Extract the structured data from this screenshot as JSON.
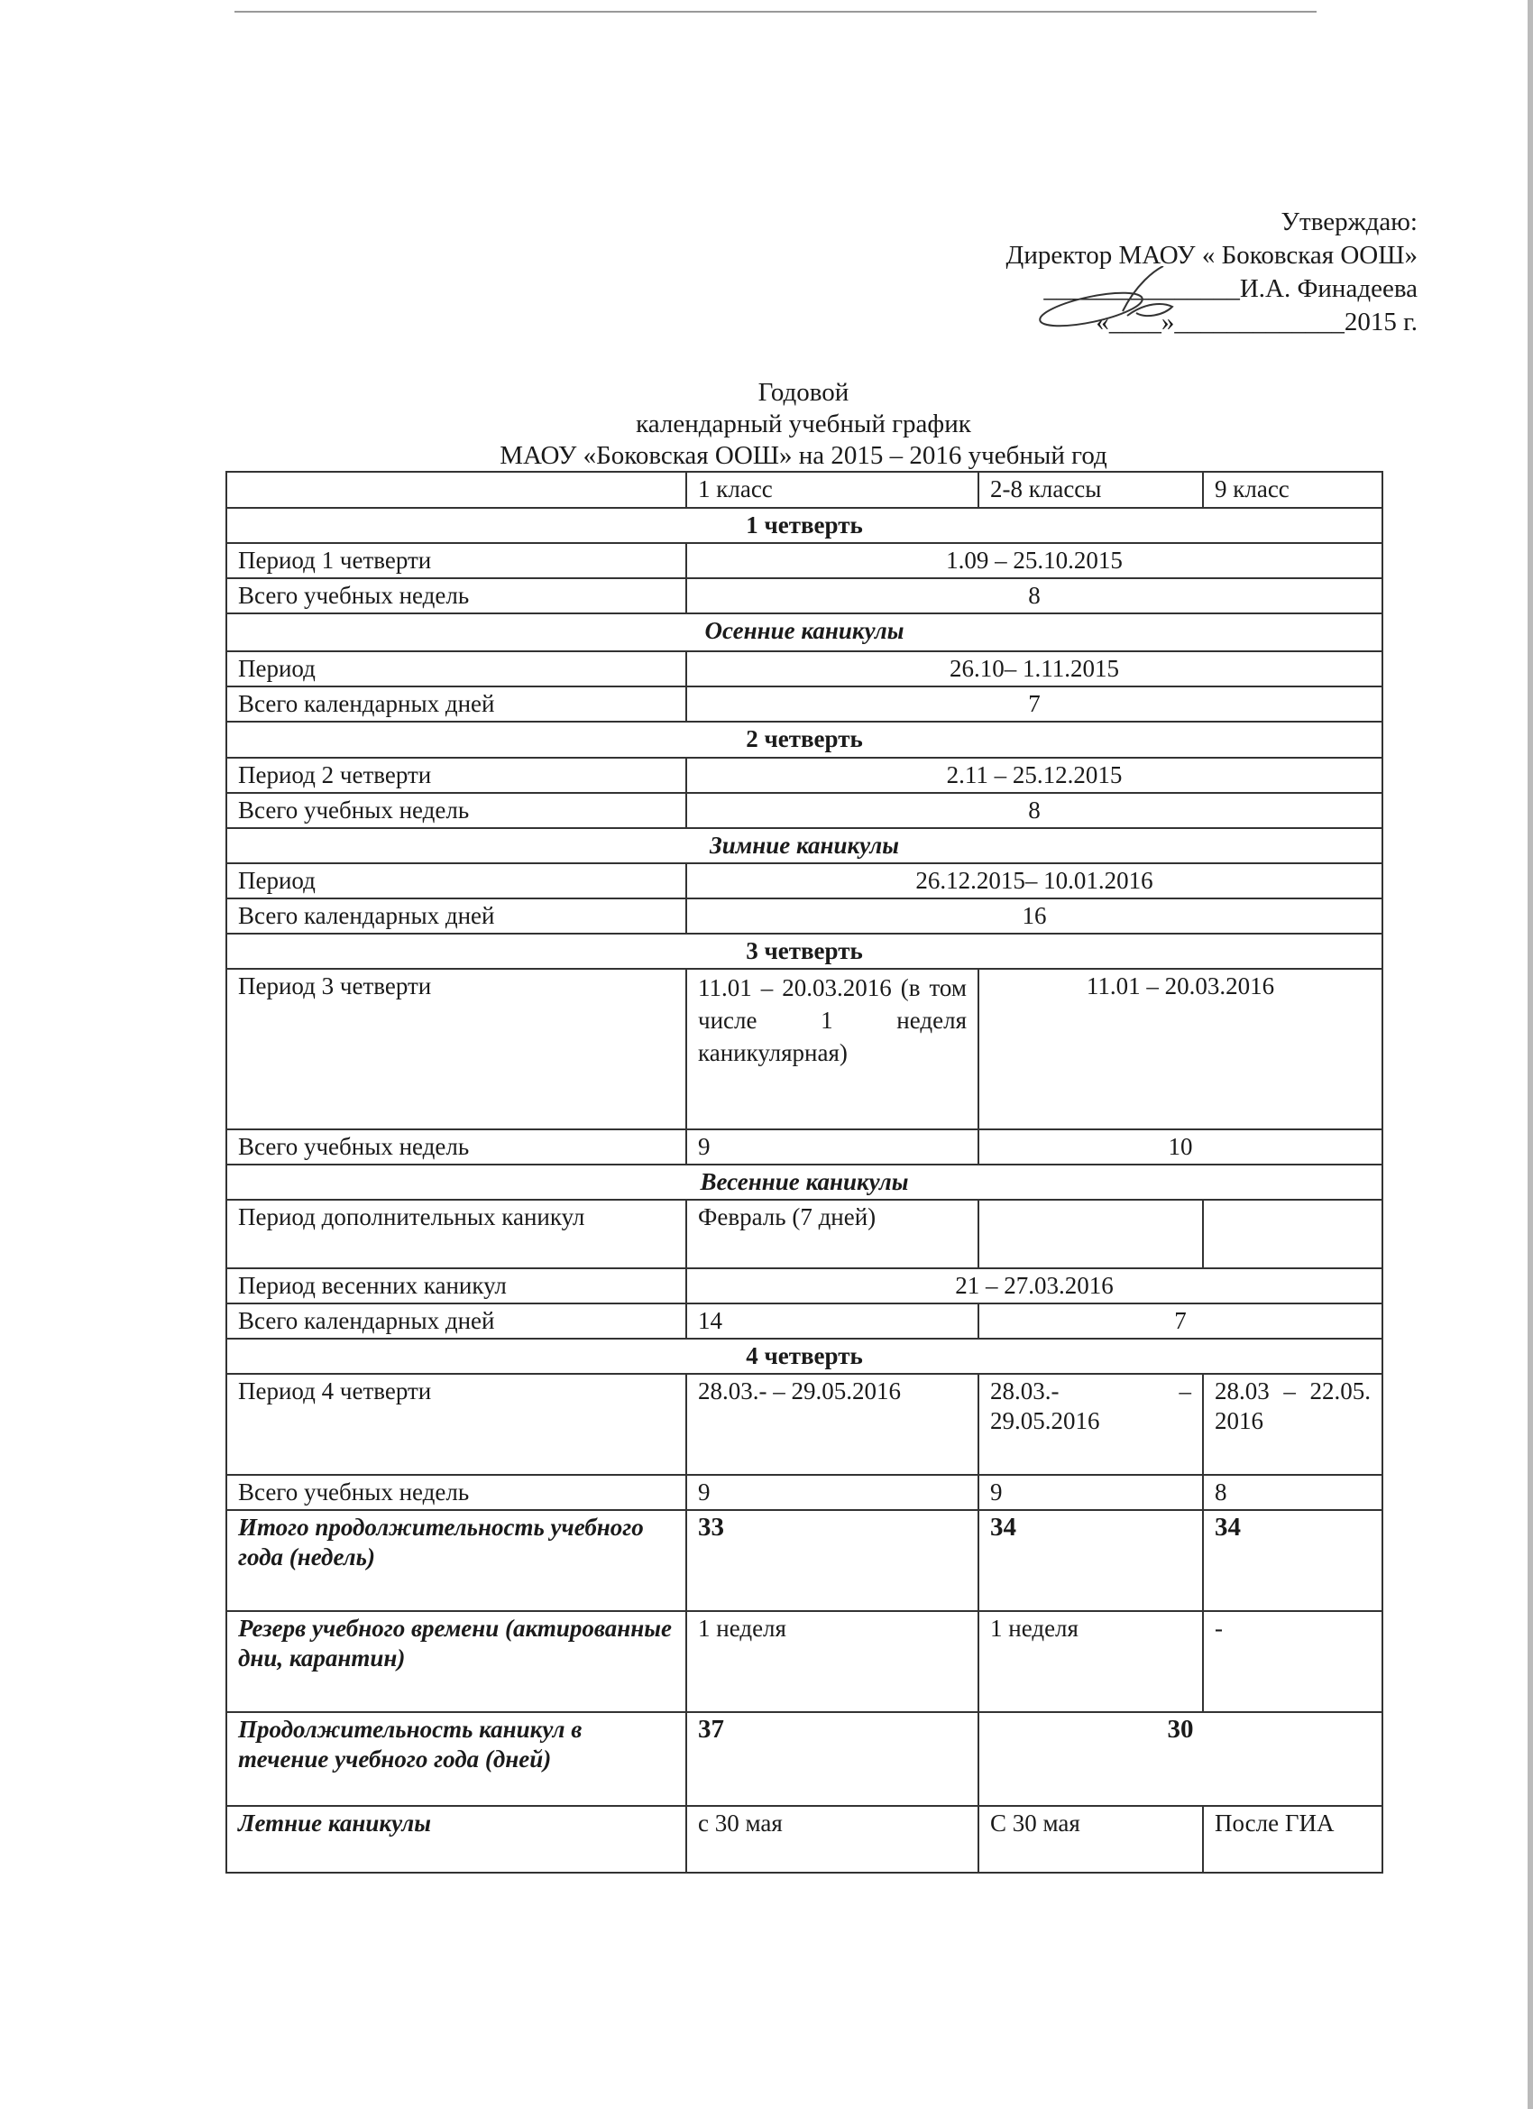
{
  "approval": {
    "line1": "Утверждаю:",
    "line2": "Директор МАОУ « Боковская ООШ»",
    "line3": "_______________И.А. Финадеева",
    "line4": "«____»_____________2015 г."
  },
  "title": {
    "line1": "Годовой",
    "line2": "календарный учебный график",
    "line3": "МАОУ «Боковская ООШ» на 2015 – 2016 учебный год"
  },
  "table": {
    "headers": [
      "",
      "1 класс",
      "2-8 классы",
      "9 класс"
    ],
    "q1": {
      "title": "1 четверть",
      "period_label": "Период 1 четверти",
      "period": "1.09 – 25.10.2015",
      "weeks_label": "Всего учебных недель",
      "weeks": "8"
    },
    "autumn": {
      "title": "Осенние каникулы",
      "period_label": "Период",
      "period": "26.10– 1.11.2015",
      "days_label": "Всего календарных дней",
      "days": "7"
    },
    "q2": {
      "title": "2 четверть",
      "period_label": "Период 2 четверти",
      "period": "2.11 – 25.12.2015",
      "weeks_label": "Всего учебных недель",
      "weeks": "8"
    },
    "winter": {
      "title": "Зимние каникулы",
      "period_label": "Период",
      "period": "26.12.2015– 10.01.2016",
      "days_label": "Всего календарных дней",
      "days": "16"
    },
    "q3": {
      "title": "3 четверть",
      "period_label": "Период 3 четверти",
      "period_1": "11.01 – 20.03.2016 (в том числе 1 неделя каникулярная)",
      "period_other": "11.01 – 20.03.2016",
      "weeks_label": "Всего учебных недель",
      "weeks_1": "9",
      "weeks_other": "10"
    },
    "spring": {
      "title": "Весенние каникулы",
      "extra_label": "Период дополнительных каникул",
      "extra_1": "Февраль (7 дней)",
      "period_label": "Период весенних каникул",
      "period": "21 – 27.03.2016",
      "days_label": "Всего календарных дней",
      "days_1": "14",
      "days_other": "7"
    },
    "q4": {
      "title": "4 четверть",
      "period_label": "Период 4 четверти",
      "period_1": "28.03.- – 29.05.2016",
      "period_2": "28.03.- – 29.05.2016",
      "period_3": "28.03 – 22.05. 2016",
      "weeks_label": "Всего учебных  недель",
      "weeks": [
        "9",
        "9",
        "8"
      ]
    },
    "total": {
      "label": "Итого продолжительность учебного года (недель)",
      "values": [
        "33",
        "34",
        "34"
      ]
    },
    "reserve": {
      "label": "Резерв учебного времени (актированные дни, карантин)",
      "values": [
        "1 неделя",
        "1 неделя",
        "-"
      ]
    },
    "holidays": {
      "label": "Продолжительность каникул в течение учебного года (дней)",
      "value_1": "37",
      "value_other": "30"
    },
    "summer": {
      "label": "Летние  каникулы",
      "values": [
        "с 30 мая",
        "С 30 мая",
        "После ГИА"
      ]
    }
  }
}
